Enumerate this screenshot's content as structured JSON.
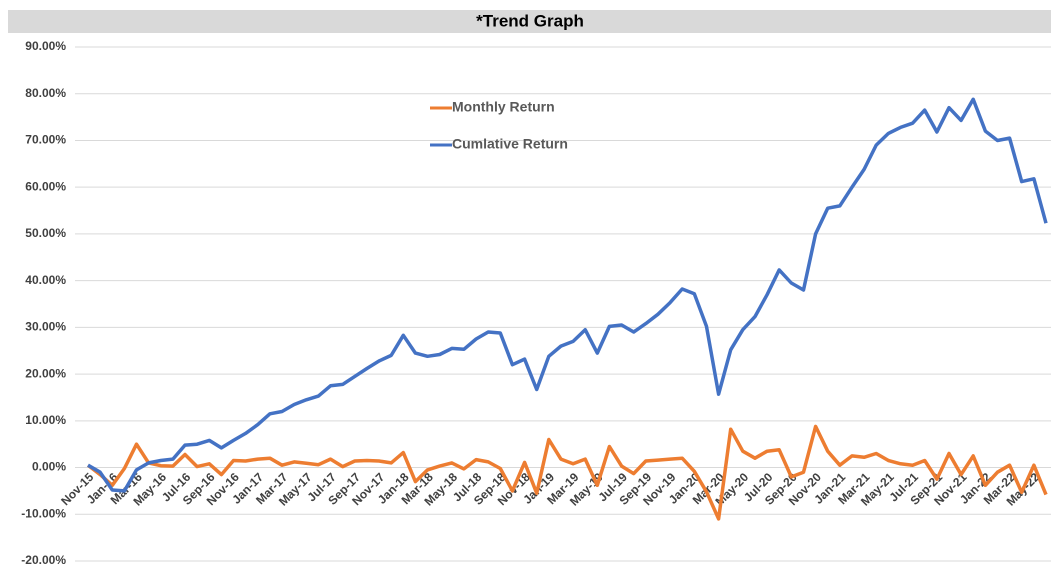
{
  "chart_data": {
    "type": "line",
    "title": "*Trend Graph",
    "categories": [
      "Nov-15",
      null,
      "Jan-16",
      null,
      "Mar-16",
      null,
      "May-16",
      null,
      "Jul-16",
      null,
      "Sep-16",
      null,
      "Nov-16",
      null,
      "Jan-17",
      null,
      "Mar-17",
      null,
      "May-17",
      null,
      "Jul-17",
      null,
      "Sep-17",
      null,
      "Nov-17",
      null,
      "Jan-18",
      null,
      "Mar-18",
      null,
      "May-18",
      null,
      "Jul-18",
      null,
      "Sep-18",
      null,
      "Nov-18",
      null,
      "Jan-19",
      null,
      "Mar-19",
      null,
      "May-19",
      null,
      "Jul-19",
      null,
      "Sep-19",
      null,
      "Nov-19",
      null,
      "Jan-20",
      null,
      "Mar-20",
      null,
      "May-20",
      null,
      "Jul-20",
      null,
      "Sep-20",
      null,
      "Nov-20",
      null,
      "Jan-21",
      null,
      "Mar-21",
      null,
      "May-21",
      null,
      "Jul-21",
      null,
      "Sep-21",
      null,
      "Nov-21",
      null,
      "Jan-22",
      null,
      "Mar-22",
      null,
      "May-22",
      null
    ],
    "series": [
      {
        "name": "Monthly Return",
        "color": "#ed7d31",
        "values": [
          0.5,
          -1.5,
          -3.8,
          -0.2,
          5,
          1,
          0.4,
          0.3,
          2.8,
          0.2,
          0.8,
          -1.5,
          1.5,
          1.4,
          1.8,
          2,
          0.5,
          1.2,
          0.9,
          0.6,
          1.8,
          0.2,
          1.4,
          1.5,
          1.4,
          1,
          3.2,
          -3,
          -0.5,
          0.3,
          1,
          -0.3,
          1.7,
          1.2,
          -0.2,
          -5,
          1.1,
          -5.5,
          6,
          1.8,
          0.8,
          1.8,
          -3.8,
          4.5,
          0.3,
          -1.3,
          1.4,
          1.6,
          1.8,
          2,
          -0.8,
          -5.2,
          -11,
          8.2,
          3.5,
          2,
          3.5,
          3.8,
          -2,
          -1,
          8.8,
          3.5,
          0.5,
          2.5,
          2.2,
          3,
          1.5,
          0.8,
          0.5,
          1.5,
          -2.5,
          3,
          -1.5,
          2.5,
          -3.8,
          -1,
          0.5,
          -5.3,
          0.5,
          -5.8
        ]
      },
      {
        "name": "Cumlative Return",
        "color": "#4472c4",
        "values": [
          0.5,
          -1,
          -4.8,
          -5,
          -0.5,
          1,
          1.5,
          1.8,
          4.8,
          5,
          5.8,
          4.2,
          5.8,
          7.3,
          9.2,
          11.5,
          12,
          13.5,
          14.5,
          15.3,
          17.5,
          17.8,
          19.5,
          21.2,
          22.8,
          24,
          28.3,
          24.5,
          23.8,
          24.2,
          25.5,
          25.3,
          27.5,
          29,
          28.8,
          22,
          23.2,
          16.7,
          23.8,
          26,
          27,
          29.5,
          24.5,
          30.2,
          30.5,
          29,
          30.8,
          32.8,
          35.3,
          38.2,
          37.2,
          30.2,
          15.7,
          25.2,
          29.5,
          32.3,
          37,
          42.3,
          39.5,
          38,
          50,
          55.5,
          56,
          60,
          63.8,
          69,
          71.5,
          72.8,
          73.7,
          76.5,
          71.8,
          77,
          74.3,
          78.8,
          72,
          70,
          70.5,
          61.2,
          61.8,
          52.3
        ]
      }
    ],
    "ylim": [
      -20,
      90
    ],
    "yticks": [
      {
        "value": -20,
        "label": "-20.00%"
      },
      {
        "value": -10,
        "label": "-10.00%"
      },
      {
        "value": 0,
        "label": "0.00%"
      },
      {
        "value": 10,
        "label": "10.00%"
      },
      {
        "value": 20,
        "label": "20.00%"
      },
      {
        "value": 30,
        "label": "30.00%"
      },
      {
        "value": 40,
        "label": "40.00%"
      },
      {
        "value": 50,
        "label": "50.00%"
      },
      {
        "value": 60,
        "label": "60.00%"
      },
      {
        "value": 70,
        "label": "70.00%"
      },
      {
        "value": 80,
        "label": "80.00%"
      },
      {
        "value": 90,
        "label": "90.00%"
      }
    ],
    "grid": true
  }
}
